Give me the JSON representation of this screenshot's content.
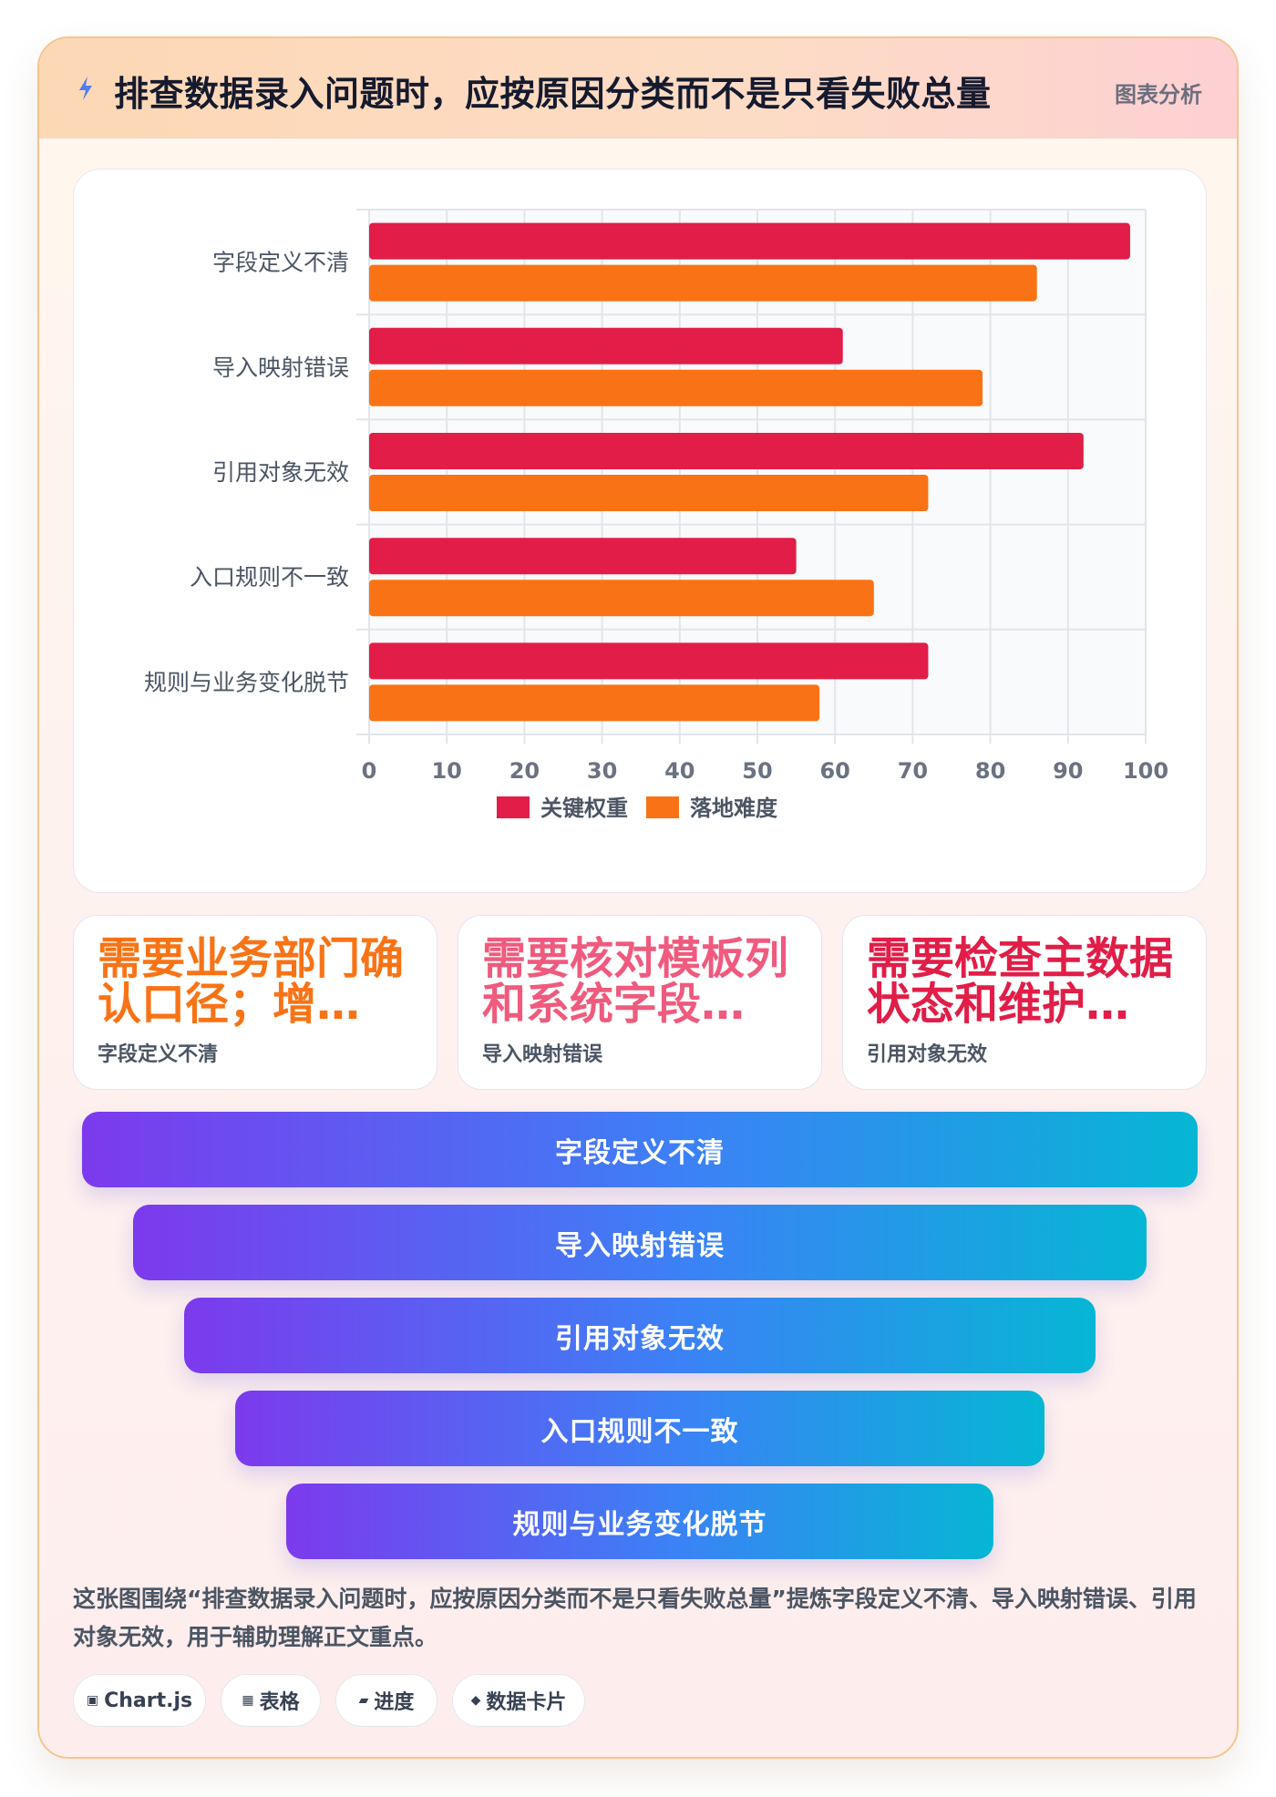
{
  "header": {
    "title": "排查数据录入问题时，应按原因分类而不是只看失败总量",
    "tag": "图表分析",
    "icon": "lightning-icon"
  },
  "chart_data": {
    "type": "bar",
    "orientation": "horizontal",
    "categories": [
      "字段定义不清",
      "导入映射错误",
      "引用对象无效",
      "入口规则不一致",
      "规则与业务变化脱节"
    ],
    "series": [
      {
        "name": "关键权重",
        "values": [
          98,
          61,
          92,
          55,
          72
        ],
        "color": "#e11d48"
      },
      {
        "name": "落地难度",
        "values": [
          86,
          79,
          72,
          65,
          58
        ],
        "color": "#f97316"
      }
    ],
    "xlim": [
      0,
      100
    ],
    "xticks": [
      0,
      10,
      20,
      30,
      40,
      50,
      60,
      70,
      80,
      90,
      100
    ],
    "grid": true,
    "legend": "bottom"
  },
  "cards": [
    {
      "headline": "需要业务部门确认口径；增…",
      "label": "字段定义不清",
      "color": "#f97316"
    },
    {
      "headline": "需要核对模板列和系统字段…",
      "label": "导入映射错误",
      "color": "#f05a7e"
    },
    {
      "headline": "需要检查主数据状态和维护…",
      "label": "引用对象无效",
      "color": "#e11d48"
    }
  ],
  "funnel": [
    "字段定义不清",
    "导入映射错误",
    "引用对象无效",
    "入口规则不一致",
    "规则与业务变化脱节"
  ],
  "description": "这张图围绕“排查数据录入问题时，应按原因分类而不是只看失败总量”提炼字段定义不清、导入映射错误、引用对象无效，用于辅助理解正文重点。",
  "pills": [
    {
      "icon": "▣",
      "icon_name": "chart-icon",
      "label": "Chart.js"
    },
    {
      "icon": "▦",
      "icon_name": "table-icon",
      "label": "表格"
    },
    {
      "icon": "▰",
      "icon_name": "progress-icon",
      "label": "进度"
    },
    {
      "icon": "◆",
      "icon_name": "card-icon",
      "label": "数据卡片"
    }
  ]
}
